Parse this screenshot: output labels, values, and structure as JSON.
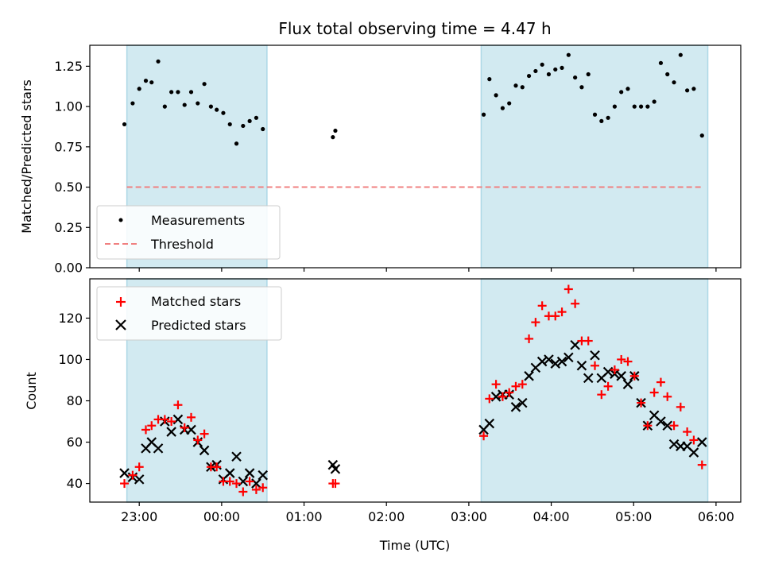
{
  "chart_data": {
    "type": "scatter",
    "title": "Flux total observing time = 4.47 h",
    "xlabel": "Time (UTC)",
    "xticks": [
      "23:00",
      "00:00",
      "01:00",
      "02:00",
      "03:00",
      "04:00",
      "05:00",
      "06:00"
    ],
    "xlim_hours": [
      22.4,
      30.3
    ],
    "observing_windows_hours": [
      [
        22.85,
        24.55
      ],
      [
        27.15,
        29.9
      ]
    ],
    "colors": {
      "window": "#add8e6",
      "measurement": "#000000",
      "threshold": "#f08080",
      "matched": "#ff0000",
      "predicted": "#000000"
    },
    "top": {
      "ylabel": "Matched/Predicted stars",
      "ylim": [
        0,
        1.38
      ],
      "yticks": [
        "0.00",
        "0.25",
        "0.50",
        "0.75",
        "1.00",
        "1.25"
      ],
      "threshold": 0.5,
      "threshold_range_hours": [
        22.85,
        29.85
      ],
      "legend": {
        "placement": "lower-left",
        "measurements": "Measurements",
        "threshold": "Threshold"
      },
      "measurements": [
        [
          22.82,
          0.89
        ],
        [
          22.92,
          1.02
        ],
        [
          23.0,
          1.11
        ],
        [
          23.08,
          1.16
        ],
        [
          23.15,
          1.15
        ],
        [
          23.23,
          1.28
        ],
        [
          23.31,
          1.0
        ],
        [
          23.39,
          1.09
        ],
        [
          23.47,
          1.09
        ],
        [
          23.55,
          1.01
        ],
        [
          23.63,
          1.09
        ],
        [
          23.71,
          1.02
        ],
        [
          23.79,
          1.14
        ],
        [
          23.87,
          1.0
        ],
        [
          23.94,
          0.98
        ],
        [
          24.02,
          0.96
        ],
        [
          24.1,
          0.89
        ],
        [
          24.18,
          0.77
        ],
        [
          24.26,
          0.88
        ],
        [
          24.34,
          0.91
        ],
        [
          24.42,
          0.93
        ],
        [
          24.5,
          0.86
        ],
        [
          25.35,
          0.81
        ],
        [
          25.38,
          0.85
        ],
        [
          27.18,
          0.95
        ],
        [
          27.25,
          1.17
        ],
        [
          27.33,
          1.07
        ],
        [
          27.41,
          0.99
        ],
        [
          27.49,
          1.02
        ],
        [
          27.57,
          1.13
        ],
        [
          27.65,
          1.12
        ],
        [
          27.73,
          1.19
        ],
        [
          27.81,
          1.22
        ],
        [
          27.89,
          1.26
        ],
        [
          27.97,
          1.2
        ],
        [
          28.05,
          1.23
        ],
        [
          28.13,
          1.24
        ],
        [
          28.21,
          1.32
        ],
        [
          28.29,
          1.18
        ],
        [
          28.37,
          1.12
        ],
        [
          28.45,
          1.2
        ],
        [
          28.53,
          0.95
        ],
        [
          28.61,
          0.91
        ],
        [
          28.69,
          0.93
        ],
        [
          28.77,
          1.0
        ],
        [
          28.85,
          1.09
        ],
        [
          28.93,
          1.11
        ],
        [
          29.01,
          1.0
        ],
        [
          29.09,
          1.0
        ],
        [
          29.17,
          1.0
        ],
        [
          29.25,
          1.03
        ],
        [
          29.33,
          1.27
        ],
        [
          29.41,
          1.2
        ],
        [
          29.49,
          1.15
        ],
        [
          29.57,
          1.32
        ],
        [
          29.65,
          1.1
        ],
        [
          29.73,
          1.11
        ],
        [
          29.83,
          0.82
        ]
      ]
    },
    "bottom": {
      "ylabel": "Count",
      "ylim": [
        31,
        139
      ],
      "yticks": [
        "40",
        "60",
        "80",
        "100",
        "120"
      ],
      "legend": {
        "placement": "top-left",
        "matched": "Matched stars",
        "predicted": "Predicted stars"
      },
      "matched": [
        [
          22.82,
          40
        ],
        [
          22.92,
          44
        ],
        [
          23.0,
          48
        ],
        [
          23.08,
          66
        ],
        [
          23.15,
          68
        ],
        [
          23.23,
          71
        ],
        [
          23.31,
          71
        ],
        [
          23.39,
          70
        ],
        [
          23.47,
          78
        ],
        [
          23.55,
          67
        ],
        [
          23.63,
          72
        ],
        [
          23.71,
          61
        ],
        [
          23.79,
          64
        ],
        [
          23.87,
          48
        ],
        [
          23.94,
          48
        ],
        [
          24.02,
          41
        ],
        [
          24.1,
          41
        ],
        [
          24.18,
          40
        ],
        [
          24.26,
          36
        ],
        [
          24.34,
          41
        ],
        [
          24.42,
          37
        ],
        [
          24.5,
          38
        ],
        [
          25.35,
          40
        ],
        [
          25.38,
          40
        ],
        [
          27.18,
          63
        ],
        [
          27.25,
          81
        ],
        [
          27.33,
          88
        ],
        [
          27.41,
          82
        ],
        [
          27.49,
          84
        ],
        [
          27.57,
          87
        ],
        [
          27.65,
          88
        ],
        [
          27.73,
          110
        ],
        [
          27.81,
          118
        ],
        [
          27.89,
          126
        ],
        [
          27.97,
          121
        ],
        [
          28.05,
          121
        ],
        [
          28.13,
          123
        ],
        [
          28.21,
          134
        ],
        [
          28.29,
          127
        ],
        [
          28.37,
          109
        ],
        [
          28.45,
          109
        ],
        [
          28.53,
          97
        ],
        [
          28.61,
          83
        ],
        [
          28.69,
          87
        ],
        [
          28.77,
          95
        ],
        [
          28.85,
          100
        ],
        [
          28.93,
          99
        ],
        [
          29.01,
          92
        ],
        [
          29.09,
          79
        ],
        [
          29.17,
          68
        ],
        [
          29.25,
          84
        ],
        [
          29.33,
          89
        ],
        [
          29.41,
          82
        ],
        [
          29.49,
          68
        ],
        [
          29.57,
          77
        ],
        [
          29.65,
          65
        ],
        [
          29.73,
          61
        ],
        [
          29.83,
          49
        ]
      ],
      "predicted": [
        [
          22.82,
          45
        ],
        [
          22.92,
          43
        ],
        [
          23.0,
          42
        ],
        [
          23.08,
          57
        ],
        [
          23.15,
          60
        ],
        [
          23.23,
          57
        ],
        [
          23.31,
          70
        ],
        [
          23.39,
          65
        ],
        [
          23.47,
          71
        ],
        [
          23.55,
          66
        ],
        [
          23.63,
          66
        ],
        [
          23.71,
          60
        ],
        [
          23.79,
          56
        ],
        [
          23.87,
          48
        ],
        [
          23.94,
          49
        ],
        [
          24.02,
          42
        ],
        [
          24.1,
          45
        ],
        [
          24.18,
          53
        ],
        [
          24.26,
          41
        ],
        [
          24.34,
          45
        ],
        [
          24.42,
          40
        ],
        [
          24.5,
          44
        ],
        [
          25.35,
          49
        ],
        [
          25.38,
          47
        ],
        [
          27.18,
          66
        ],
        [
          27.25,
          69
        ],
        [
          27.33,
          82
        ],
        [
          27.41,
          83
        ],
        [
          27.49,
          83
        ],
        [
          27.57,
          77
        ],
        [
          27.65,
          79
        ],
        [
          27.73,
          92
        ],
        [
          27.81,
          96
        ],
        [
          27.89,
          99
        ],
        [
          27.97,
          100
        ],
        [
          28.05,
          98
        ],
        [
          28.13,
          99
        ],
        [
          28.21,
          101
        ],
        [
          28.29,
          107
        ],
        [
          28.37,
          97
        ],
        [
          28.45,
          91
        ],
        [
          28.53,
          102
        ],
        [
          28.61,
          91
        ],
        [
          28.69,
          94
        ],
        [
          28.77,
          93
        ],
        [
          28.85,
          92
        ],
        [
          28.93,
          88
        ],
        [
          29.01,
          92
        ],
        [
          29.09,
          79
        ],
        [
          29.17,
          68
        ],
        [
          29.25,
          73
        ],
        [
          29.33,
          70
        ],
        [
          29.41,
          68
        ],
        [
          29.49,
          59
        ],
        [
          29.57,
          58
        ],
        [
          29.65,
          58
        ],
        [
          29.73,
          55
        ],
        [
          29.83,
          60
        ]
      ]
    }
  }
}
